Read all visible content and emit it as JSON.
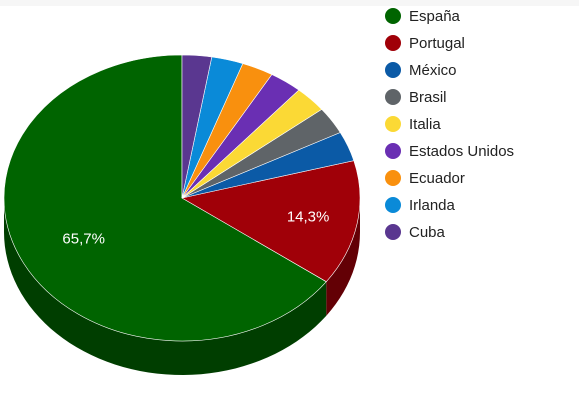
{
  "chart_data": {
    "type": "pie",
    "style": "3d",
    "legend_position": "right",
    "slices": [
      {
        "label": "España",
        "value": 65.7,
        "color": "#006400"
      },
      {
        "label": "Portugal",
        "value": 14.3,
        "color": "#a00008"
      },
      {
        "label": "México",
        "value": 3.4,
        "color": "#0b5aa6"
      },
      {
        "label": "Brasil",
        "value": 3.1,
        "color": "#5f6468"
      },
      {
        "label": "Italia",
        "value": 3.0,
        "color": "#fbd935"
      },
      {
        "label": "Estados Unidos",
        "value": 3.0,
        "color": "#6a2fb3"
      },
      {
        "label": "Ecuador",
        "value": 2.9,
        "color": "#f9900e"
      },
      {
        "label": "Irlanda",
        "value": 2.9,
        "color": "#0a8ad8"
      },
      {
        "label": "Cuba",
        "value": 2.7,
        "color": "#5a3790"
      }
    ],
    "data_labels": [
      {
        "slice": "España",
        "text": "65,7%"
      },
      {
        "slice": "Portugal",
        "text": "14,3%"
      }
    ]
  }
}
